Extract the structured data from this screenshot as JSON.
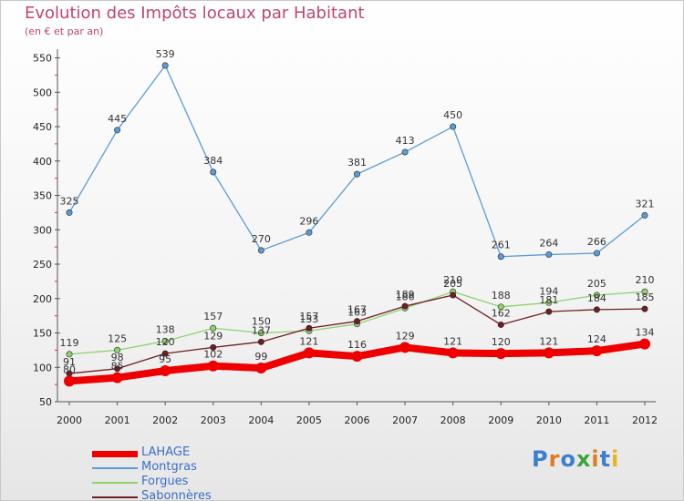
{
  "chart_data": {
    "type": "line",
    "title": "Evolution des Impôts locaux par Habitant",
    "subtitle": "(en € et par an)",
    "categories": [
      "2000",
      "2001",
      "2002",
      "2003",
      "2004",
      "2005",
      "2006",
      "2007",
      "2008",
      "2009",
      "2010",
      "2011",
      "2012"
    ],
    "ylim": [
      50,
      560
    ],
    "yticks": [
      50,
      100,
      150,
      200,
      250,
      300,
      350,
      400,
      450,
      500,
      550
    ],
    "grid": false,
    "legend_position": "bottom-left",
    "series": [
      {
        "name": "Montgras",
        "color": "#5b9bd5",
        "values": [
          325,
          445,
          539,
          384,
          270,
          296,
          381,
          413,
          450,
          261,
          264,
          266,
          321
        ],
        "labels": [
          "325",
          "445",
          "539",
          "384",
          "270",
          "296",
          "381",
          "413",
          "450",
          "261",
          "264",
          "266",
          "321"
        ]
      },
      {
        "name": "Forgues",
        "color": "#8ed26e",
        "values": [
          119,
          125,
          138,
          157,
          150,
          153,
          163,
          186,
          210,
          188,
          194,
          205,
          210
        ],
        "labels": [
          "119",
          "125",
          "138",
          "157",
          "150",
          "153",
          "163",
          "186",
          "210",
          "188",
          "194",
          "205",
          "210"
        ]
      },
      {
        "name": "Sabonnères",
        "color": "#6e1e22",
        "values": [
          91,
          98,
          120,
          129,
          137,
          157,
          167,
          189,
          205,
          162,
          181,
          184,
          185
        ],
        "labels": [
          "91",
          "98",
          "120",
          "129",
          "137",
          "157",
          "167",
          "189",
          "205",
          "162",
          "181",
          "184",
          "185"
        ]
      },
      {
        "name": "LAHAGE",
        "color": "#ee0000",
        "values": [
          80,
          85,
          95,
          102,
          99,
          121,
          116,
          129,
          121,
          120,
          121,
          124,
          134
        ],
        "labels": [
          "80",
          "85",
          "95",
          "102",
          "99",
          "121",
          "116",
          "129",
          "121",
          "120",
          "121",
          "124",
          "134"
        ]
      }
    ]
  },
  "logo": {
    "letters": [
      "P",
      "r",
      "o",
      "x",
      "i",
      "t",
      "i"
    ],
    "colors": [
      "#3a7fd0",
      "#e07c1e",
      "#3a7fd0",
      "#3aa63a",
      "#e07c1e",
      "#3a7fd0",
      "#e8b41e"
    ]
  }
}
